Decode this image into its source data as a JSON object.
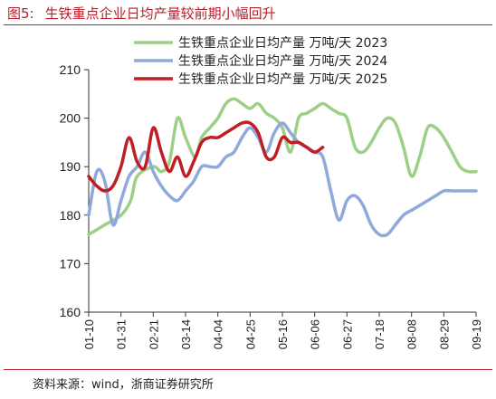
{
  "figure": {
    "number": "图5:",
    "title": "生铁重点企业日均产量较前期小幅回升",
    "source": "资料来源：wind，浙商证券研究所"
  },
  "chart_data": {
    "type": "line",
    "ylim": [
      160,
      210
    ],
    "yticks": [
      160,
      170,
      180,
      190,
      200,
      210
    ],
    "xtick_labels": [
      "01-10",
      "01-31",
      "02-21",
      "03-14",
      "04-04",
      "04-25",
      "05-16",
      "06-06",
      "06-27",
      "07-18",
      "08-08",
      "08-29",
      "09-19"
    ],
    "grid": false,
    "legend_position": "top-right",
    "series": [
      {
        "name": "生铁重点企业日均产量  万吨/天  2023",
        "color": "#9dcf86",
        "x": [
          0,
          1,
          2,
          2.6,
          3,
          4,
          4.5,
          5,
          5.5,
          6,
          6.6,
          7,
          7.5,
          8,
          8.5,
          9,
          9.5,
          10,
          10.5,
          11,
          11.5,
          12,
          12.5,
          13,
          13.5,
          14,
          14.5,
          15,
          15.5,
          16,
          16.5,
          17,
          17.5,
          18,
          18.5,
          19,
          19.5,
          20,
          20.5,
          21,
          21.5,
          22,
          22.5,
          23,
          23.5,
          24
        ],
        "values": [
          176,
          178,
          180,
          183,
          188,
          190,
          189,
          191,
          200,
          196,
          192,
          196,
          198,
          200,
          203,
          204,
          203,
          202,
          203,
          201,
          200,
          198,
          193,
          200,
          201,
          202,
          203,
          202,
          201,
          200,
          194,
          193,
          195,
          198,
          200,
          199,
          194,
          188,
          192,
          198,
          198,
          196,
          193,
          190,
          189,
          189
        ]
      },
      {
        "name": "生铁重点企业日均产量  万吨/天  2024",
        "color": "#8fa9dc",
        "x": [
          0,
          0.5,
          1,
          1.5,
          2,
          2.5,
          3,
          3.5,
          4,
          4.5,
          5,
          5.5,
          6,
          6.5,
          7,
          7.5,
          8,
          8.5,
          9,
          9.5,
          10,
          10.5,
          11,
          11.5,
          12,
          12.5,
          13,
          13.5,
          14,
          14.5,
          15,
          15.5,
          16,
          16.5,
          17,
          17.5,
          18,
          18.5,
          19,
          19.5,
          20,
          20.5,
          21,
          21.5,
          22,
          22.5,
          23,
          23.5,
          24
        ],
        "values": [
          180,
          189,
          187,
          178,
          183,
          188,
          190,
          193,
          189,
          186,
          184,
          183,
          185,
          187,
          190,
          190,
          190,
          192,
          193,
          196,
          198,
          196,
          193,
          197,
          199,
          197,
          195,
          194,
          193,
          192,
          185,
          179,
          183,
          184,
          182,
          178,
          176,
          176,
          178,
          180,
          181,
          182,
          183,
          184,
          185,
          185,
          185,
          185,
          185
        ]
      },
      {
        "name": "生铁重点企业日均产量  万吨/天  2025",
        "color": "#c01e24",
        "x": [
          0,
          0.5,
          1,
          1.5,
          2,
          2.5,
          3,
          3.5,
          4,
          4.5,
          5,
          5.5,
          6,
          6.5,
          7,
          7.5,
          8,
          8.5,
          9,
          9.5,
          10,
          10.5,
          11,
          11.5,
          12,
          12.5,
          13,
          13.5,
          14,
          14.5
        ],
        "values": [
          188,
          186,
          185,
          186,
          190,
          196,
          191,
          190,
          198,
          193,
          189,
          192,
          188,
          191,
          195,
          196,
          196,
          197,
          198,
          199,
          199,
          197,
          192,
          192,
          196,
          195,
          195,
          194,
          193,
          194
        ]
      }
    ]
  }
}
